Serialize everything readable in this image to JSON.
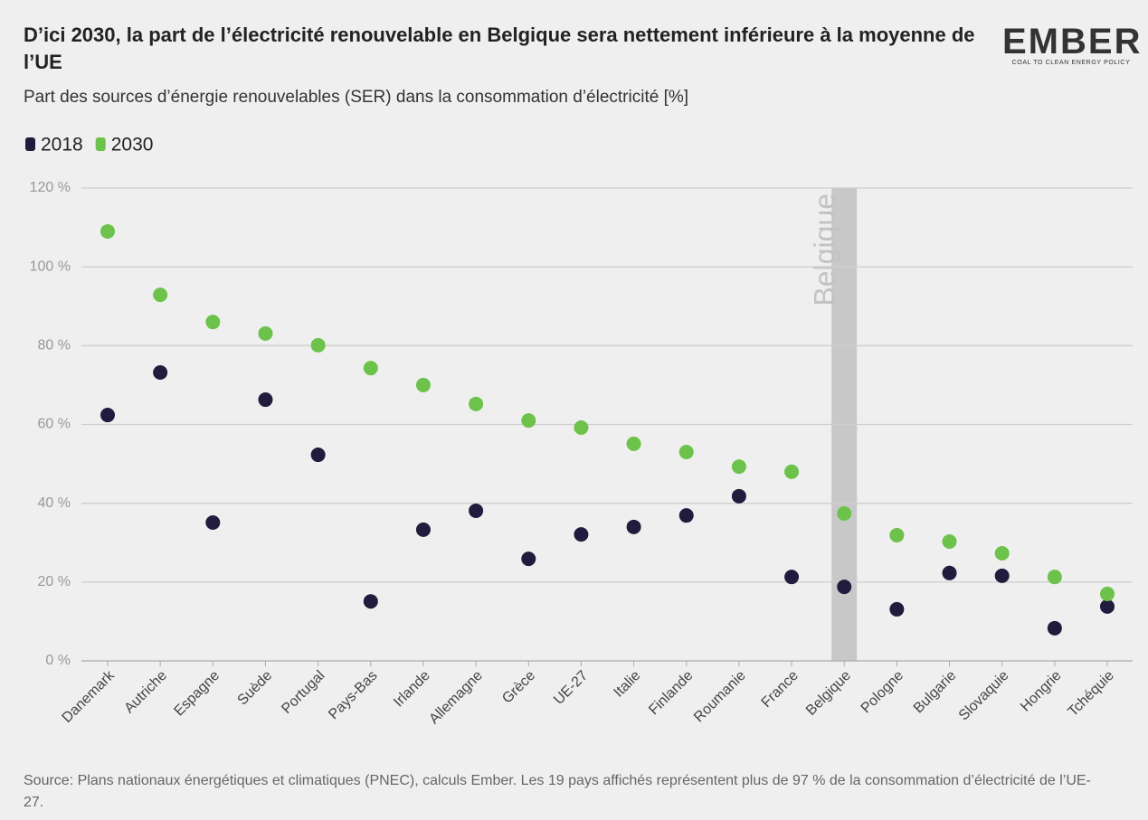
{
  "logo": {
    "name": "EMBER",
    "tagline": "COAL TO CLEAN ENERGY POLICY"
  },
  "chart_data": {
    "type": "dot",
    "title": "D’ici 2030, la part de l’électricité renouvelable en Belgique sera nettement inférieure à la moyenne de l’UE",
    "subtitle": "Part des sources d’énergie renouvelables (SER) dans la consommation d’électricité [%]",
    "source": "Source: Plans nationaux énergétiques et climatiques (PNEC), calculs Ember. Les 19 pays affichés représentent plus de 97 % de la consommation d’électricité de l’UE-27.",
    "highlight": "Belgique",
    "categories": [
      "Danemark",
      "Autriche",
      "Espagne",
      "Suède",
      "Portugal",
      "Pays-Bas",
      "Irlande",
      "Allemagne",
      "Grèce",
      "UE-27",
      "Italie",
      "Finlande",
      "Roumanie",
      "France",
      "Belgique",
      "Pologne",
      "Bulgarie",
      "Slovaquie",
      "Hongrie",
      "Tchéquie"
    ],
    "series": [
      {
        "name": "2018",
        "color": "#1f1c3d",
        "values": [
          62.4,
          73.2,
          35.1,
          66.3,
          52.3,
          15.1,
          33.3,
          38.1,
          25.9,
          32.1,
          34,
          36.9,
          41.8,
          21.3,
          18.8,
          13.1,
          22.3,
          21.6,
          8.3,
          13.8
        ]
      },
      {
        "name": "2030",
        "color": "#6cc24a",
        "values": [
          109,
          92.9,
          86,
          83.1,
          80.1,
          74.3,
          70,
          65.2,
          61,
          59.2,
          55.1,
          53,
          49.3,
          48,
          37.4,
          31.9,
          30.3,
          27.3,
          21.3,
          17
        ]
      }
    ],
    "ylim": [
      0,
      120
    ],
    "yticks": [
      {
        "value": 0,
        "label": "0 %"
      },
      {
        "value": 20,
        "label": "20 %"
      },
      {
        "value": 40,
        "label": "40 %"
      },
      {
        "value": 60,
        "label": "60 %"
      },
      {
        "value": 80,
        "label": "80 %"
      },
      {
        "value": 100,
        "label": "100 %"
      },
      {
        "value": 120,
        "label": "120 %"
      }
    ],
    "grid": true,
    "legend": "top-left"
  }
}
